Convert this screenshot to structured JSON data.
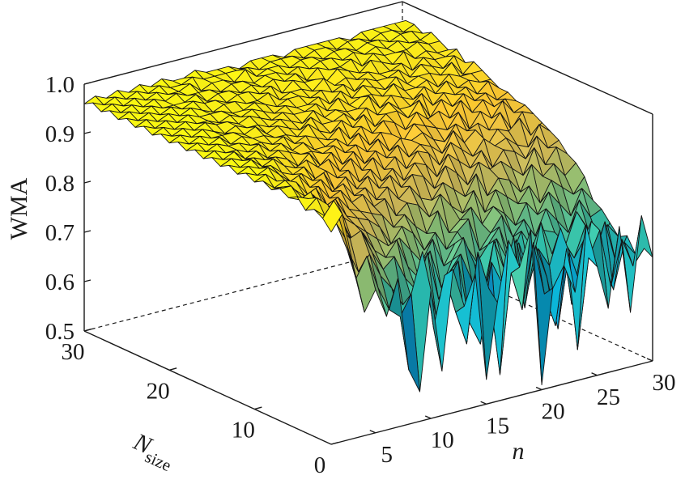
{
  "chart_data": {
    "type": "surface3d",
    "title": "",
    "zlabel": "WMA",
    "xlabel": "n",
    "ylabel_main": "N",
    "ylabel_sub": "size",
    "x_range": [
      1,
      30
    ],
    "y_range": [
      1,
      30
    ],
    "zlim": [
      0.5,
      1.0
    ],
    "x_ticks": [
      5,
      10,
      15,
      20,
      25,
      30
    ],
    "y_ticks": [
      0,
      10,
      20,
      30
    ],
    "z_ticks": [
      "0.5",
      "0.6",
      "0.7",
      "0.8",
      "0.9",
      "1.0"
    ],
    "grid": false,
    "colormap": "parula",
    "colormap_stops": [
      "#352a87",
      "#0f5cdd",
      "#1481d6",
      "#06a4ca",
      "#2eb7a4",
      "#87bf77",
      "#d1bb59",
      "#fec832",
      "#f9fb0e"
    ],
    "x_samples": [
      1,
      2,
      3,
      4,
      5,
      6,
      7,
      8,
      9,
      10,
      11,
      12,
      13,
      14,
      15,
      16,
      17,
      18,
      19,
      20,
      21,
      22,
      23,
      24,
      25,
      26,
      27,
      28,
      29,
      30
    ],
    "y_samples": [
      1,
      2,
      3,
      4,
      5,
      6,
      7,
      8,
      9,
      10,
      11,
      12,
      13,
      14,
      15,
      16,
      17,
      18,
      19,
      20,
      21,
      22,
      23,
      24,
      25,
      26,
      27,
      28,
      29,
      30
    ],
    "z_values": [
      [
        0.93,
        0.96,
        0.85,
        0.75,
        0.79,
        0.73,
        0.8,
        0.61,
        0.56,
        0.76,
        0.59,
        0.79,
        0.71,
        0.77,
        0.55,
        0.7,
        0.82,
        0.76,
        0.83,
        0.51,
        0.7,
        0.74,
        0.68,
        0.81,
        0.72,
        0.63,
        0.79,
        0.61,
        0.8,
        0.71
      ],
      [
        0.95,
        0.98,
        0.9,
        0.81,
        0.85,
        0.78,
        0.73,
        0.71,
        0.75,
        0.83,
        0.67,
        0.77,
        0.69,
        0.62,
        0.8,
        0.72,
        0.54,
        0.74,
        0.66,
        0.79,
        0.68,
        0.61,
        0.76,
        0.55,
        0.73,
        0.78,
        0.66,
        0.75,
        0.69,
        0.72
      ],
      [
        0.96,
        0.94,
        0.92,
        0.86,
        0.81,
        0.84,
        0.79,
        0.76,
        0.72,
        0.71,
        0.79,
        0.68,
        0.74,
        0.78,
        0.65,
        0.6,
        0.76,
        0.71,
        0.8,
        0.65,
        0.77,
        0.7,
        0.59,
        0.74,
        0.67,
        0.79,
        0.71,
        0.64,
        0.73,
        0.7
      ],
      [
        0.95,
        0.97,
        0.95,
        0.9,
        0.87,
        0.88,
        0.83,
        0.79,
        0.81,
        0.76,
        0.73,
        0.8,
        0.7,
        0.75,
        0.78,
        0.72,
        0.67,
        0.79,
        0.72,
        0.78,
        0.67,
        0.75,
        0.71,
        0.78,
        0.62,
        0.74,
        0.7,
        0.77,
        0.68,
        0.73
      ],
      [
        0.97,
        0.96,
        0.93,
        0.92,
        0.9,
        0.85,
        0.86,
        0.82,
        0.8,
        0.83,
        0.77,
        0.74,
        0.79,
        0.71,
        0.76,
        0.8,
        0.74,
        0.7,
        0.78,
        0.73,
        0.76,
        0.69,
        0.79,
        0.72,
        0.74,
        0.7,
        0.76,
        0.71,
        0.75,
        0.72
      ],
      [
        0.96,
        0.95,
        0.96,
        0.91,
        0.92,
        0.89,
        0.87,
        0.85,
        0.83,
        0.81,
        0.82,
        0.79,
        0.76,
        0.8,
        0.74,
        0.78,
        0.77,
        0.73,
        0.76,
        0.79,
        0.72,
        0.77,
        0.73,
        0.76,
        0.75,
        0.72,
        0.78,
        0.74,
        0.71,
        0.74
      ],
      [
        0.97,
        0.97,
        0.94,
        0.94,
        0.91,
        0.92,
        0.88,
        0.87,
        0.86,
        0.84,
        0.8,
        0.83,
        0.81,
        0.77,
        0.8,
        0.76,
        0.79,
        0.81,
        0.74,
        0.77,
        0.8,
        0.75,
        0.78,
        0.74,
        0.79,
        0.76,
        0.73,
        0.79,
        0.75,
        0.76
      ],
      [
        0.96,
        0.96,
        0.95,
        0.93,
        0.94,
        0.9,
        0.91,
        0.88,
        0.87,
        0.86,
        0.85,
        0.82,
        0.84,
        0.81,
        0.79,
        0.83,
        0.78,
        0.8,
        0.82,
        0.78,
        0.81,
        0.79,
        0.76,
        0.8,
        0.77,
        0.81,
        0.78,
        0.75,
        0.8,
        0.77
      ],
      [
        0.97,
        0.95,
        0.96,
        0.95,
        0.92,
        0.93,
        0.9,
        0.91,
        0.88,
        0.89,
        0.86,
        0.87,
        0.83,
        0.85,
        0.84,
        0.81,
        0.85,
        0.82,
        0.8,
        0.84,
        0.79,
        0.83,
        0.81,
        0.79,
        0.82,
        0.78,
        0.82,
        0.8,
        0.78,
        0.81
      ],
      [
        0.96,
        0.97,
        0.95,
        0.94,
        0.95,
        0.92,
        0.93,
        0.9,
        0.91,
        0.88,
        0.89,
        0.86,
        0.88,
        0.85,
        0.87,
        0.84,
        0.83,
        0.86,
        0.84,
        0.82,
        0.86,
        0.81,
        0.84,
        0.83,
        0.8,
        0.85,
        0.82,
        0.84,
        0.81,
        0.83
      ],
      [
        0.97,
        0.96,
        0.97,
        0.95,
        0.93,
        0.94,
        0.92,
        0.93,
        0.89,
        0.91,
        0.88,
        0.9,
        0.87,
        0.89,
        0.86,
        0.88,
        0.87,
        0.84,
        0.88,
        0.86,
        0.83,
        0.87,
        0.85,
        0.86,
        0.84,
        0.82,
        0.87,
        0.83,
        0.86,
        0.84
      ],
      [
        0.96,
        0.97,
        0.96,
        0.96,
        0.94,
        0.93,
        0.94,
        0.91,
        0.92,
        0.9,
        0.91,
        0.88,
        0.9,
        0.87,
        0.89,
        0.86,
        0.89,
        0.88,
        0.85,
        0.89,
        0.87,
        0.85,
        0.88,
        0.84,
        0.87,
        0.86,
        0.84,
        0.88,
        0.85,
        0.86
      ],
      [
        0.97,
        0.96,
        0.97,
        0.95,
        0.96,
        0.94,
        0.93,
        0.94,
        0.92,
        0.93,
        0.9,
        0.92,
        0.89,
        0.91,
        0.88,
        0.9,
        0.87,
        0.9,
        0.89,
        0.86,
        0.9,
        0.88,
        0.86,
        0.89,
        0.87,
        0.88,
        0.86,
        0.85,
        0.89,
        0.87
      ],
      [
        0.96,
        0.97,
        0.96,
        0.96,
        0.95,
        0.95,
        0.94,
        0.92,
        0.94,
        0.91,
        0.93,
        0.9,
        0.92,
        0.89,
        0.91,
        0.89,
        0.91,
        0.88,
        0.9,
        0.89,
        0.87,
        0.91,
        0.88,
        0.9,
        0.86,
        0.89,
        0.88,
        0.9,
        0.86,
        0.88
      ],
      [
        0.97,
        0.96,
        0.97,
        0.95,
        0.96,
        0.94,
        0.95,
        0.94,
        0.93,
        0.93,
        0.92,
        0.93,
        0.91,
        0.92,
        0.9,
        0.92,
        0.89,
        0.91,
        0.9,
        0.91,
        0.89,
        0.88,
        0.91,
        0.89,
        0.9,
        0.88,
        0.91,
        0.87,
        0.9,
        0.89
      ],
      [
        0.96,
        0.97,
        0.96,
        0.96,
        0.95,
        0.96,
        0.94,
        0.95,
        0.93,
        0.94,
        0.92,
        0.92,
        0.93,
        0.91,
        0.93,
        0.9,
        0.92,
        0.91,
        0.89,
        0.92,
        0.91,
        0.9,
        0.89,
        0.92,
        0.88,
        0.91,
        0.89,
        0.92,
        0.89,
        0.9
      ],
      [
        0.97,
        0.96,
        0.97,
        0.96,
        0.96,
        0.95,
        0.95,
        0.94,
        0.95,
        0.93,
        0.94,
        0.93,
        0.92,
        0.94,
        0.91,
        0.93,
        0.91,
        0.93,
        0.92,
        0.9,
        0.93,
        0.91,
        0.92,
        0.9,
        0.93,
        0.9,
        0.92,
        0.9,
        0.91,
        0.9
      ],
      [
        0.96,
        0.97,
        0.96,
        0.97,
        0.95,
        0.96,
        0.95,
        0.95,
        0.94,
        0.94,
        0.93,
        0.95,
        0.93,
        0.92,
        0.94,
        0.92,
        0.94,
        0.91,
        0.93,
        0.93,
        0.91,
        0.94,
        0.9,
        0.93,
        0.91,
        0.93,
        0.91,
        0.92,
        0.9,
        0.91
      ],
      [
        0.97,
        0.96,
        0.97,
        0.96,
        0.96,
        0.96,
        0.95,
        0.96,
        0.94,
        0.95,
        0.94,
        0.93,
        0.95,
        0.93,
        0.93,
        0.94,
        0.92,
        0.94,
        0.92,
        0.94,
        0.92,
        0.92,
        0.94,
        0.91,
        0.93,
        0.92,
        0.93,
        0.91,
        0.93,
        0.91
      ],
      [
        0.96,
        0.97,
        0.96,
        0.97,
        0.96,
        0.95,
        0.96,
        0.95,
        0.95,
        0.94,
        0.95,
        0.94,
        0.93,
        0.95,
        0.93,
        0.94,
        0.93,
        0.93,
        0.95,
        0.92,
        0.94,
        0.93,
        0.92,
        0.94,
        0.92,
        0.94,
        0.92,
        0.93,
        0.92,
        0.92
      ],
      [
        0.97,
        0.96,
        0.97,
        0.96,
        0.97,
        0.96,
        0.96,
        0.95,
        0.96,
        0.95,
        0.94,
        0.95,
        0.94,
        0.94,
        0.95,
        0.93,
        0.95,
        0.93,
        0.94,
        0.94,
        0.93,
        0.95,
        0.93,
        0.93,
        0.94,
        0.92,
        0.94,
        0.93,
        0.93,
        0.93
      ],
      [
        0.96,
        0.97,
        0.96,
        0.97,
        0.96,
        0.96,
        0.95,
        0.96,
        0.95,
        0.96,
        0.95,
        0.94,
        0.95,
        0.94,
        0.94,
        0.95,
        0.93,
        0.95,
        0.93,
        0.95,
        0.94,
        0.93,
        0.95,
        0.93,
        0.94,
        0.94,
        0.93,
        0.95,
        0.92,
        0.94
      ],
      [
        0.97,
        0.96,
        0.97,
        0.96,
        0.97,
        0.96,
        0.96,
        0.96,
        0.95,
        0.95,
        0.96,
        0.95,
        0.94,
        0.95,
        0.95,
        0.94,
        0.95,
        0.94,
        0.95,
        0.93,
        0.95,
        0.94,
        0.94,
        0.95,
        0.93,
        0.95,
        0.94,
        0.93,
        0.95,
        0.93
      ],
      [
        0.96,
        0.97,
        0.96,
        0.97,
        0.96,
        0.97,
        0.96,
        0.95,
        0.96,
        0.96,
        0.95,
        0.95,
        0.96,
        0.94,
        0.95,
        0.95,
        0.94,
        0.96,
        0.94,
        0.95,
        0.94,
        0.95,
        0.94,
        0.94,
        0.95,
        0.93,
        0.95,
        0.94,
        0.94,
        0.95
      ],
      [
        0.97,
        0.96,
        0.97,
        0.96,
        0.97,
        0.96,
        0.97,
        0.96,
        0.96,
        0.95,
        0.96,
        0.96,
        0.95,
        0.96,
        0.94,
        0.96,
        0.95,
        0.95,
        0.94,
        0.96,
        0.95,
        0.94,
        0.96,
        0.95,
        0.94,
        0.96,
        0.94,
        0.95,
        0.94,
        0.94
      ],
      [
        0.96,
        0.97,
        0.96,
        0.97,
        0.96,
        0.96,
        0.96,
        0.97,
        0.95,
        0.96,
        0.96,
        0.95,
        0.96,
        0.95,
        0.96,
        0.95,
        0.96,
        0.94,
        0.96,
        0.95,
        0.95,
        0.96,
        0.94,
        0.96,
        0.95,
        0.95,
        0.95,
        0.96,
        0.95,
        0.95
      ],
      [
        0.97,
        0.96,
        0.97,
        0.96,
        0.97,
        0.96,
        0.97,
        0.96,
        0.96,
        0.96,
        0.95,
        0.96,
        0.96,
        0.95,
        0.96,
        0.96,
        0.95,
        0.96,
        0.95,
        0.96,
        0.96,
        0.95,
        0.96,
        0.95,
        0.96,
        0.95,
        0.96,
        0.95,
        0.95,
        0.96
      ],
      [
        0.96,
        0.97,
        0.96,
        0.97,
        0.96,
        0.97,
        0.96,
        0.96,
        0.97,
        0.95,
        0.96,
        0.96,
        0.95,
        0.97,
        0.95,
        0.96,
        0.96,
        0.95,
        0.96,
        0.96,
        0.95,
        0.96,
        0.96,
        0.95,
        0.96,
        0.96,
        0.95,
        0.96,
        0.96,
        0.95
      ],
      [
        0.97,
        0.96,
        0.97,
        0.96,
        0.97,
        0.96,
        0.97,
        0.96,
        0.96,
        0.97,
        0.96,
        0.96,
        0.96,
        0.96,
        0.96,
        0.95,
        0.96,
        0.96,
        0.96,
        0.95,
        0.96,
        0.96,
        0.95,
        0.96,
        0.96,
        0.95,
        0.96,
        0.96,
        0.95,
        0.96
      ],
      [
        0.96,
        0.97,
        0.96,
        0.97,
        0.96,
        0.97,
        0.96,
        0.97,
        0.96,
        0.96,
        0.97,
        0.96,
        0.96,
        0.96,
        0.95,
        0.96,
        0.96,
        0.96,
        0.95,
        0.96,
        0.96,
        0.96,
        0.96,
        0.96,
        0.95,
        0.96,
        0.96,
        0.96,
        0.96,
        0.96
      ]
    ]
  }
}
